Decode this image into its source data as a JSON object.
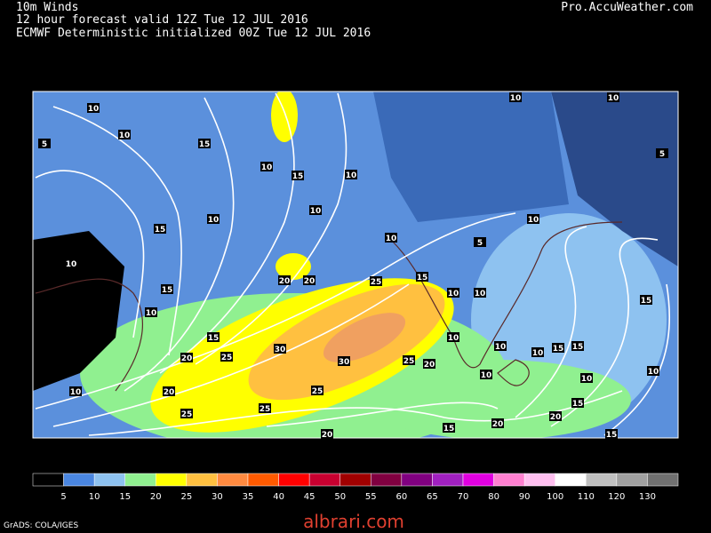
{
  "header": {
    "title": "10m Winds",
    "line2": "12 hour forecast valid 12Z Tue 12 JUL 2016",
    "line3": "ECMWF Deterministic initialized 00Z Tue 12 JUL 2016",
    "source": "Pro.AccuWeather.com"
  },
  "map": {
    "wind_labels": [
      10,
      5,
      10,
      15,
      10,
      15,
      10,
      10,
      10,
      15,
      10,
      15,
      10,
      15,
      20,
      25,
      30,
      20,
      20,
      25,
      30,
      25,
      20,
      25,
      25,
      20,
      25,
      20,
      15,
      20,
      20,
      15,
      10,
      15,
      15,
      10,
      10,
      10,
      10,
      15,
      10,
      10,
      15,
      10,
      15,
      10,
      10,
      10,
      5,
      10,
      5,
      10
    ]
  },
  "colorbar": {
    "labels": [
      5,
      10,
      15,
      20,
      25,
      30,
      35,
      40,
      45,
      50,
      55,
      60,
      65,
      70,
      80,
      90,
      100,
      110,
      120,
      130
    ],
    "colors": [
      "#000000",
      "#4a86e0",
      "#8ec2f0",
      "#90f090",
      "#ffff00",
      "#ffc040",
      "#ff8a40",
      "#ff5a00",
      "#ff0000",
      "#c80030",
      "#a00000",
      "#800040",
      "#800080",
      "#a020c0",
      "#e000e0",
      "#ff80d0",
      "#ffc0f0",
      "#ffffff",
      "#c0c0c0",
      "#a0a0a0",
      "#707070"
    ]
  },
  "footer": {
    "credit": "GrADS: COLA/IGES",
    "watermark": "albrari.com"
  }
}
